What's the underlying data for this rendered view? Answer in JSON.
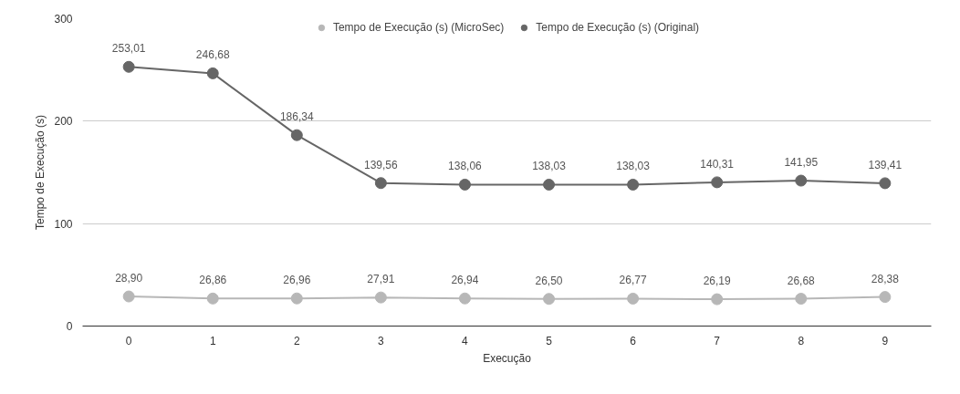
{
  "chart_data": {
    "type": "line",
    "xlabel": "Execução",
    "ylabel": "Tempo de Execução (s)",
    "categories": [
      "0",
      "1",
      "2",
      "3",
      "4",
      "5",
      "6",
      "7",
      "8",
      "9"
    ],
    "series": [
      {
        "name": "Tempo de Execução (s) (MicroSec)",
        "color": "#b7b7b7",
        "values": [
          28.9,
          26.86,
          26.96,
          27.91,
          26.94,
          26.5,
          26.77,
          26.19,
          26.68,
          28.38
        ],
        "value_labels": [
          "28,90",
          "26,86",
          "26,96",
          "27,91",
          "26,94",
          "26,50",
          "26,77",
          "26,19",
          "26,68",
          "28,38"
        ]
      },
      {
        "name": "Tempo de Execução (s) (Original)",
        "color": "#666666",
        "values": [
          253.01,
          246.68,
          186.34,
          139.56,
          138.06,
          138.03,
          138.03,
          140.31,
          141.95,
          139.41
        ],
        "value_labels": [
          "253,01",
          "246,68",
          "186,34",
          "139,56",
          "138,06",
          "138,03",
          "138,03",
          "140,31",
          "141,95",
          "139,41"
        ]
      }
    ],
    "ylim": [
      0,
      300
    ],
    "yticks": [
      0,
      100,
      200,
      300
    ],
    "grid": "y",
    "legend": "top",
    "marker": "circle",
    "line_style": "solid"
  }
}
